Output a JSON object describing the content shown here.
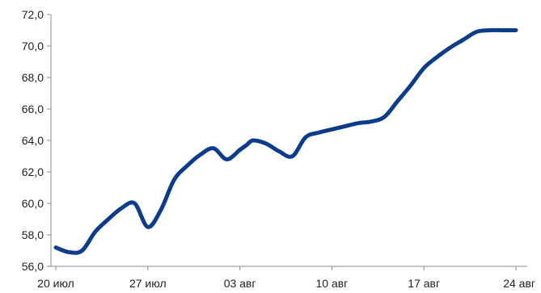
{
  "chart_data": {
    "type": "line",
    "title": "",
    "xlabel": "",
    "ylabel": "",
    "grid": false,
    "legend": "none",
    "ylim": [
      56.0,
      72.0
    ],
    "y_ticks": [
      "56,0",
      "58,0",
      "60,0",
      "62,0",
      "64,0",
      "66,0",
      "68,0",
      "70,0",
      "72,0"
    ],
    "x_ticks": [
      "20 июл",
      "27 июл",
      "03 авг",
      "10 авг",
      "17 авг",
      "24 авг"
    ],
    "x_domain": [
      0,
      35
    ],
    "x_tick_positions": [
      0,
      7,
      14,
      21,
      28,
      35
    ],
    "colors": {
      "line": "#0b3c8c",
      "axis": "#8c8c8c"
    },
    "series": [
      {
        "x": [
          0,
          1,
          2,
          3,
          4,
          5,
          6,
          7,
          8,
          9,
          10,
          11,
          12,
          13,
          14,
          14.5,
          15,
          16,
          17,
          18,
          19,
          20,
          21,
          22,
          23,
          24,
          25,
          26,
          27,
          28,
          29,
          30,
          31,
          32,
          33,
          34,
          35
        ],
        "y": [
          57.2,
          56.9,
          57.0,
          58.2,
          59.0,
          59.7,
          60.0,
          58.5,
          59.6,
          61.5,
          62.4,
          63.1,
          63.5,
          62.8,
          63.4,
          63.7,
          64.0,
          63.8,
          63.3,
          63.0,
          64.2,
          64.5,
          64.7,
          64.9,
          65.1,
          65.2,
          65.5,
          66.5,
          67.5,
          68.6,
          69.3,
          69.9,
          70.4,
          70.9,
          71.0,
          71.0,
          71.0
        ]
      }
    ]
  }
}
